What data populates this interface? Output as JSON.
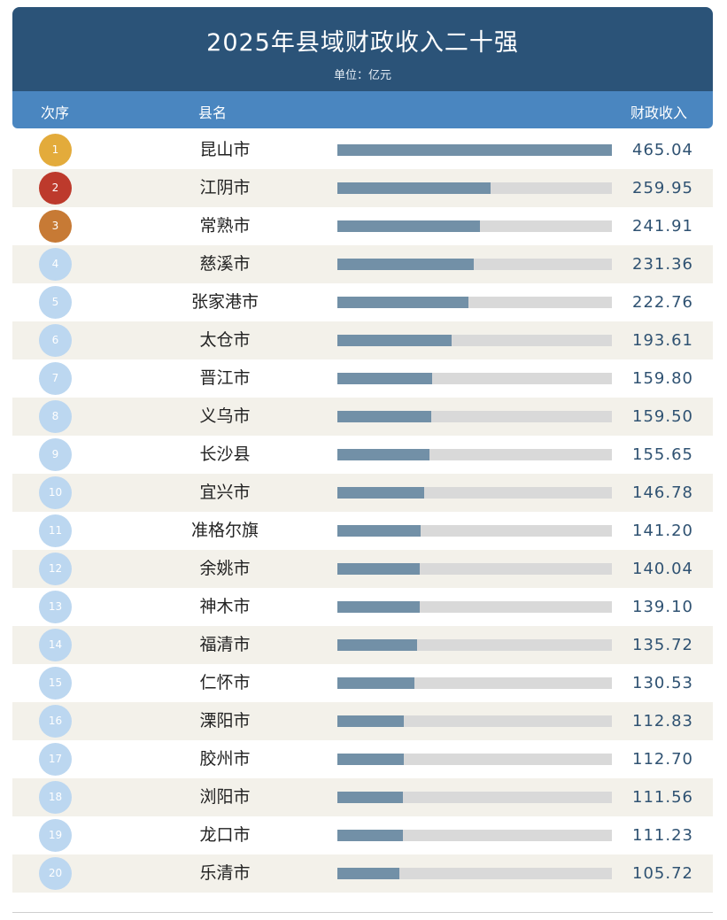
{
  "title": "2025年县域财政收入二十强",
  "subtitle": "单位：亿元",
  "columns": {
    "rank": "次序",
    "name": "县名",
    "value": "财政收入"
  },
  "colors": {
    "header_bg": "#2b5378",
    "column_header_bg": "#4a86c0",
    "bar_fill": "#7290a7",
    "bar_track": "#d9d9d9",
    "row_alt_bg": "#f3f1ea",
    "rank_gold": "#e3ab3b",
    "rank_red": "#bd3a2c",
    "rank_bronze": "#c77a35",
    "rank_default": "#bcd7f0"
  },
  "chart_data": {
    "type": "bar",
    "orientation": "horizontal",
    "title": "2025年县域财政收入二十强",
    "subtitle": "单位：亿元",
    "xlim": [
      0,
      465.04
    ],
    "rows": [
      {
        "rank": "1",
        "name": "昆山市",
        "value": 465.04,
        "label": "465.04"
      },
      {
        "rank": "2",
        "name": "江阴市",
        "value": 259.95,
        "label": "259.95"
      },
      {
        "rank": "3",
        "name": "常熟市",
        "value": 241.91,
        "label": "241.91"
      },
      {
        "rank": "4",
        "name": "慈溪市",
        "value": 231.36,
        "label": "231.36"
      },
      {
        "rank": "5",
        "name": "张家港市",
        "value": 222.76,
        "label": "222.76"
      },
      {
        "rank": "6",
        "name": "太仓市",
        "value": 193.61,
        "label": "193.61"
      },
      {
        "rank": "7",
        "name": "晋江市",
        "value": 159.8,
        "label": "159.80"
      },
      {
        "rank": "8",
        "name": "义乌市",
        "value": 159.5,
        "label": "159.50"
      },
      {
        "rank": "9",
        "name": "长沙县",
        "value": 155.65,
        "label": "155.65"
      },
      {
        "rank": "10",
        "name": "宜兴市",
        "value": 146.78,
        "label": "146.78"
      },
      {
        "rank": "11",
        "name": "准格尔旗",
        "value": 141.2,
        "label": "141.20"
      },
      {
        "rank": "12",
        "name": "余姚市",
        "value": 140.04,
        "label": "140.04"
      },
      {
        "rank": "13",
        "name": "神木市",
        "value": 139.1,
        "label": "139.10"
      },
      {
        "rank": "14",
        "name": "福清市",
        "value": 135.72,
        "label": "135.72"
      },
      {
        "rank": "15",
        "name": "仁怀市",
        "value": 130.53,
        "label": "130.53"
      },
      {
        "rank": "16",
        "name": "溧阳市",
        "value": 112.83,
        "label": "112.83"
      },
      {
        "rank": "17",
        "name": "胶州市",
        "value": 112.7,
        "label": "112.70"
      },
      {
        "rank": "18",
        "name": "浏阳市",
        "value": 111.56,
        "label": "111.56"
      },
      {
        "rank": "19",
        "name": "龙口市",
        "value": 111.23,
        "label": "111.23"
      },
      {
        "rank": "20",
        "name": "乐清市",
        "value": 105.72,
        "label": "105.72"
      }
    ]
  }
}
